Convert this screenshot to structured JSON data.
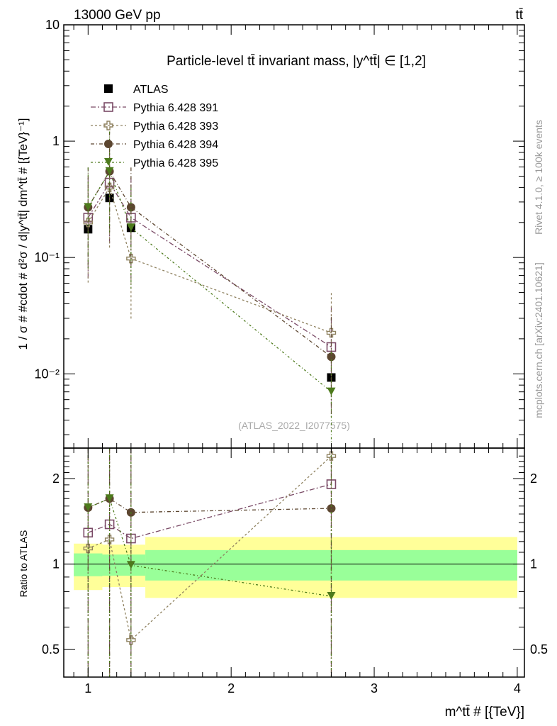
{
  "header": {
    "energy": "13000 GeV pp",
    "process": "tt̄"
  },
  "side": {
    "rivet": "Rivet 4.1.0, ≥ 100k events",
    "mcplots": "mcplots.cern.ch [arXiv:2401.10621]"
  },
  "colors": {
    "ATLAS": "#000000",
    "391": "#7a4a66",
    "393": "#8f8260",
    "394": "#5c4630",
    "395": "#4d7a1c",
    "band_outer": "#ffff99",
    "band_inner": "#99ff99"
  },
  "chart_data": [
    {
      "type": "scatter",
      "title": "Particle-level tt̄ invariant mass, |y^tt̄| ∈ [1,2]",
      "ylabel": "1 / σ # #cdot # d²σ / d|y^tt̄| dm^tt̄ # [{TeV}⁻¹]",
      "yscale": "log",
      "ylim": [
        0.0023,
        10
      ],
      "xlim": [
        0.83,
        4.05
      ],
      "yticks": [
        {
          "v": 10,
          "label": "10"
        },
        {
          "v": 1,
          "label": "1"
        },
        {
          "v": 0.1,
          "label": "10⁻¹"
        },
        {
          "v": 0.01,
          "label": "10⁻²"
        }
      ],
      "legend_placement": "top-left",
      "annotation": "(ATLAS_2022_I2077575)",
      "x": [
        1.0,
        1.15,
        1.3,
        2.7
      ],
      "series": [
        {
          "name": "ATLAS",
          "key": "ATLAS",
          "marker": "square-filled",
          "values": [
            0.175,
            0.325,
            0.18,
            0.0093
          ]
        },
        {
          "name": "Pythia 6.428 391",
          "key": "391",
          "marker": "square-open",
          "values": [
            0.22,
            0.44,
            0.22,
            0.017
          ]
        },
        {
          "name": "Pythia 6.428 393",
          "key": "393",
          "marker": "cross-open",
          "values": [
            0.2,
            0.4,
            0.098,
            0.0225
          ]
        },
        {
          "name": "Pythia 6.428 394",
          "key": "394",
          "marker": "circle",
          "values": [
            0.27,
            0.55,
            0.27,
            0.014
          ]
        },
        {
          "name": "Pythia 6.428 395",
          "key": "395",
          "marker": "triangle-down",
          "values": [
            0.27,
            0.55,
            0.18,
            0.007
          ]
        }
      ]
    },
    {
      "type": "scatter",
      "ylabel": "Ratio to ATLAS",
      "xlabel": "m^tt̄ # [{TeV}]",
      "yscale": "log",
      "ylim": [
        0.4,
        2.56
      ],
      "xlim": [
        0.83,
        4.05
      ],
      "yticks": [
        {
          "v": 2,
          "label": "2"
        },
        {
          "v": 1,
          "label": "1"
        },
        {
          "v": 0.5,
          "label": "0.5"
        }
      ],
      "xticks": [
        {
          "v": 1,
          "label": "1"
        },
        {
          "v": 2,
          "label": "2"
        },
        {
          "v": 3,
          "label": "3"
        },
        {
          "v": 4,
          "label": "4"
        }
      ],
      "bands": [
        {
          "xlo": 0.9,
          "xhi": 1.1,
          "outer": [
            0.81,
            1.18
          ],
          "inner": [
            0.906,
            1.09
          ]
        },
        {
          "xlo": 1.1,
          "xhi": 1.4,
          "outer": [
            0.83,
            1.17
          ],
          "inner": [
            0.91,
            1.08
          ]
        },
        {
          "xlo": 1.4,
          "xhi": 4.0,
          "outer": [
            0.76,
            1.245
          ],
          "inner": [
            0.875,
            1.12
          ]
        }
      ],
      "x": [
        1.0,
        1.15,
        1.3,
        2.7
      ],
      "series": [
        {
          "name": "Pythia 6.428 391",
          "key": "391",
          "marker": "square-open",
          "values": [
            1.29,
            1.38,
            1.23,
            1.91
          ]
        },
        {
          "name": "Pythia 6.428 393",
          "key": "393",
          "marker": "cross-open",
          "values": [
            1.135,
            1.22,
            0.54,
            2.4
          ]
        },
        {
          "name": "Pythia 6.428 394",
          "key": "394",
          "marker": "circle",
          "values": [
            1.58,
            1.7,
            1.52,
            1.57
          ]
        },
        {
          "name": "Pythia 6.428 395",
          "key": "395",
          "marker": "triangle-down",
          "values": [
            1.58,
            1.7,
            0.99,
            0.77
          ]
        }
      ]
    }
  ]
}
